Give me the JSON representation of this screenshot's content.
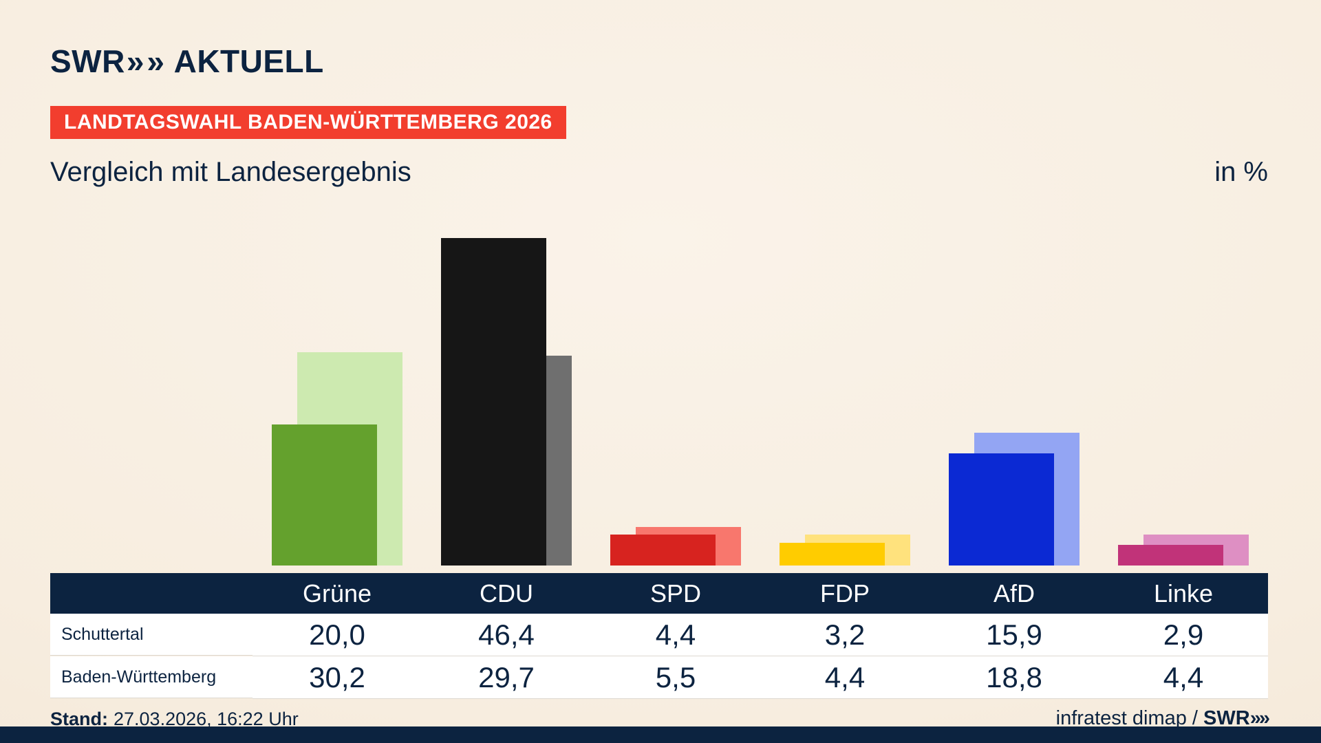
{
  "brand": {
    "swr": "SWR",
    "chevron": "»",
    "aktuell": "AKTUELL"
  },
  "header": {
    "badge": "LANDTAGSWAHL BADEN-WÜRTTEMBERG 2026",
    "title": "Vergleich mit Landesergebnis",
    "unit": "in %"
  },
  "chart_data": {
    "type": "bar",
    "title": "Vergleich mit Landesergebnis",
    "unit": "in %",
    "categories": [
      "Grüne",
      "CDU",
      "SPD",
      "FDP",
      "AfD",
      "Linke"
    ],
    "series": [
      {
        "name": "Schuttertal",
        "values": [
          20.0,
          46.4,
          4.4,
          3.2,
          15.9,
          2.9
        ]
      },
      {
        "name": "Baden-Württemberg",
        "values": [
          30.2,
          29.7,
          5.5,
          4.4,
          18.8,
          4.4
        ]
      }
    ],
    "ylim": [
      0,
      50
    ],
    "grid": false,
    "legend_position": "table-below",
    "colors": {
      "front": [
        "#64a12d",
        "#161616",
        "#d7231f",
        "#ffcc00",
        "#0b29d3",
        "#c13379"
      ],
      "back": [
        "#cdeab0",
        "#6f6f6f",
        "#f8776d",
        "#ffe27d",
        "#93a5f3",
        "#de8fc3"
      ]
    }
  },
  "table": {
    "columns": [
      "Grüne",
      "CDU",
      "SPD",
      "FDP",
      "AfD",
      "Linke"
    ],
    "rows": [
      {
        "label": "Schuttertal",
        "values": [
          "20,0",
          "46,4",
          "4,4",
          "3,2",
          "15,9",
          "2,9"
        ]
      },
      {
        "label": "Baden-Württemberg",
        "values": [
          "30,2",
          "29,7",
          "5,5",
          "4,4",
          "18,8",
          "4,4"
        ]
      }
    ]
  },
  "footer": {
    "stand_label": "Stand:",
    "stand_value": "27.03.2026, 16:22 Uhr",
    "source": "infratest dimap / ",
    "brand_swr": "SWR",
    "brand_chevron": "»"
  }
}
